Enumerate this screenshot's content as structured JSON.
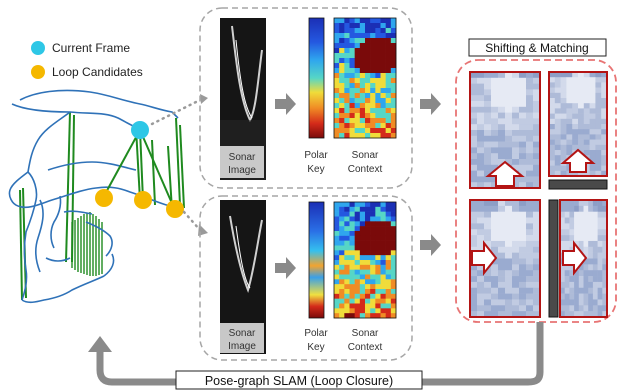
{
  "legend": {
    "current_frame": "Current Frame",
    "loop_candidates": "Loop Candidates"
  },
  "labels": {
    "sonar_image": [
      "Sonar",
      "Image"
    ],
    "polar_key": [
      "Polar",
      "Key"
    ],
    "sonar_context": [
      "Sonar",
      "Context"
    ],
    "shifting_matching": "Shifting & Matching",
    "pose_graph": "Pose-graph SLAM (Loop Closure)"
  },
  "colors": {
    "current_frame": "#2ec7e6",
    "loop_candidate": "#f5b800",
    "trajectory": "#2f72b8",
    "loop_edge": "#1f8a1f",
    "arrow_gray": "#8a8a8a",
    "dashed_box": "#a6a6a6",
    "shift_box": "#e87474",
    "frame_red": "#b31414"
  }
}
